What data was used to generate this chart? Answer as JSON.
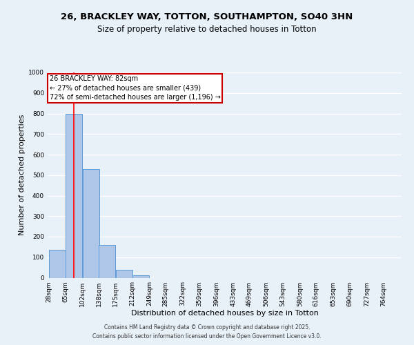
{
  "title1": "26, BRACKLEY WAY, TOTTON, SOUTHAMPTON, SO40 3HN",
  "title2": "Size of property relative to detached houses in Totton",
  "xlabel": "Distribution of detached houses by size in Totton",
  "ylabel": "Number of detached properties",
  "bins": [
    "28sqm",
    "65sqm",
    "102sqm",
    "138sqm",
    "175sqm",
    "212sqm",
    "249sqm",
    "285sqm",
    "322sqm",
    "359sqm",
    "396sqm",
    "433sqm",
    "469sqm",
    "506sqm",
    "543sqm",
    "580sqm",
    "616sqm",
    "653sqm",
    "690sqm",
    "727sqm",
    "764sqm"
  ],
  "bin_edges": [
    28,
    65,
    102,
    138,
    175,
    212,
    249,
    285,
    322,
    359,
    396,
    433,
    469,
    506,
    543,
    580,
    616,
    653,
    690,
    727,
    764
  ],
  "values": [
    135,
    800,
    530,
    160,
    37,
    12,
    0,
    0,
    0,
    0,
    0,
    0,
    0,
    0,
    0,
    0,
    0,
    0,
    0,
    0,
    0
  ],
  "bar_color": "#aec6e8",
  "bar_edge_color": "#5b9bd5",
  "red_line_x": 82,
  "annotation_line1": "26 BRACKLEY WAY: 82sqm",
  "annotation_line2": "← 27% of detached houses are smaller (439)",
  "annotation_line3": "72% of semi-detached houses are larger (1,196) →",
  "annotation_box_color": "#ffffff",
  "annotation_box_edge": "#cc0000",
  "background_color": "#e8f0f8",
  "plot_bg_color": "#e8f0f8",
  "grid_color": "#ffffff",
  "ylim": [
    0,
    1000
  ],
  "yticks": [
    0,
    100,
    200,
    300,
    400,
    500,
    600,
    700,
    800,
    900,
    1000
  ],
  "footer1": "Contains HM Land Registry data © Crown copyright and database right 2025.",
  "footer2": "Contains public sector information licensed under the Open Government Licence v3.0.",
  "title_fontsize": 9.5,
  "subtitle_fontsize": 8.5,
  "tick_fontsize": 6.5,
  "ylabel_fontsize": 8,
  "xlabel_fontsize": 8,
  "annotation_fontsize": 7,
  "footer_fontsize": 5.5
}
